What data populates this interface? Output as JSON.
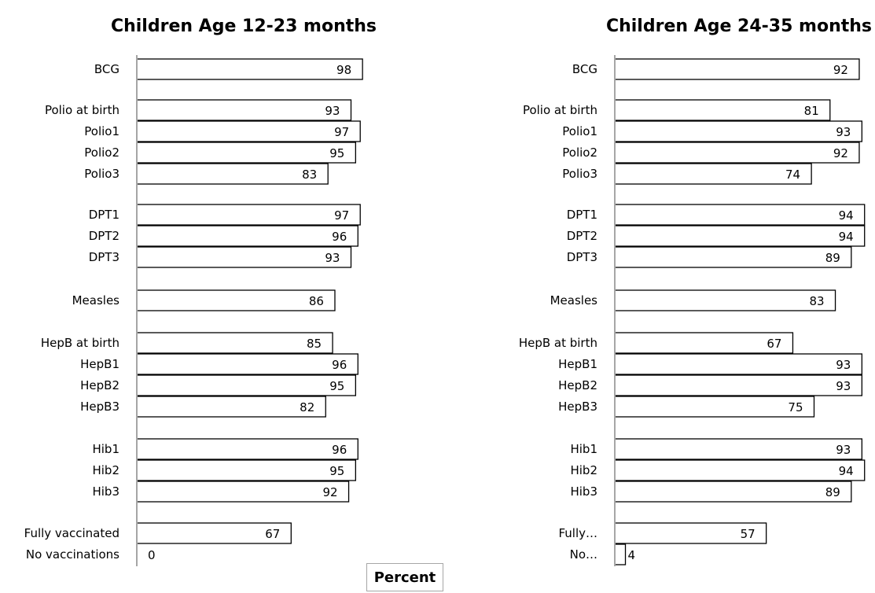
{
  "chart_data": [
    {
      "type": "bar",
      "orientation": "horizontal",
      "title": "Children Age 12-23 months",
      "categories": [
        "BCG",
        "Polio at birth",
        "Polio1",
        "Polio2",
        "Polio3",
        "DPT1",
        "DPT2",
        "DPT3",
        "Measles",
        "HepB at birth",
        "HepB1",
        "HepB2",
        "HepB3",
        "Hib1",
        "Hib2",
        "Hib3",
        "Fully vaccinated",
        "No vaccinations"
      ],
      "values": [
        98,
        93,
        97,
        95,
        83,
        97,
        96,
        93,
        86,
        85,
        96,
        95,
        82,
        96,
        95,
        92,
        67,
        0
      ],
      "xlim": [
        0,
        100
      ]
    },
    {
      "type": "bar",
      "orientation": "horizontal",
      "title": "Children Age 24-35 months",
      "categories": [
        "BCG",
        "Polio at birth",
        "Polio1",
        "Polio2",
        "Polio3",
        "DPT1",
        "DPT2",
        "DPT3",
        "Measles",
        "HepB at birth",
        "HepB1",
        "HepB2",
        "HepB3",
        "Hib1",
        "Hib2",
        "Hib3",
        "Fully…",
        "No…"
      ],
      "values": [
        92,
        81,
        93,
        92,
        74,
        94,
        94,
        89,
        83,
        67,
        93,
        93,
        75,
        93,
        94,
        89,
        57,
        4
      ],
      "xlim": [
        0,
        100
      ]
    }
  ],
  "axis_title": "Percent"
}
